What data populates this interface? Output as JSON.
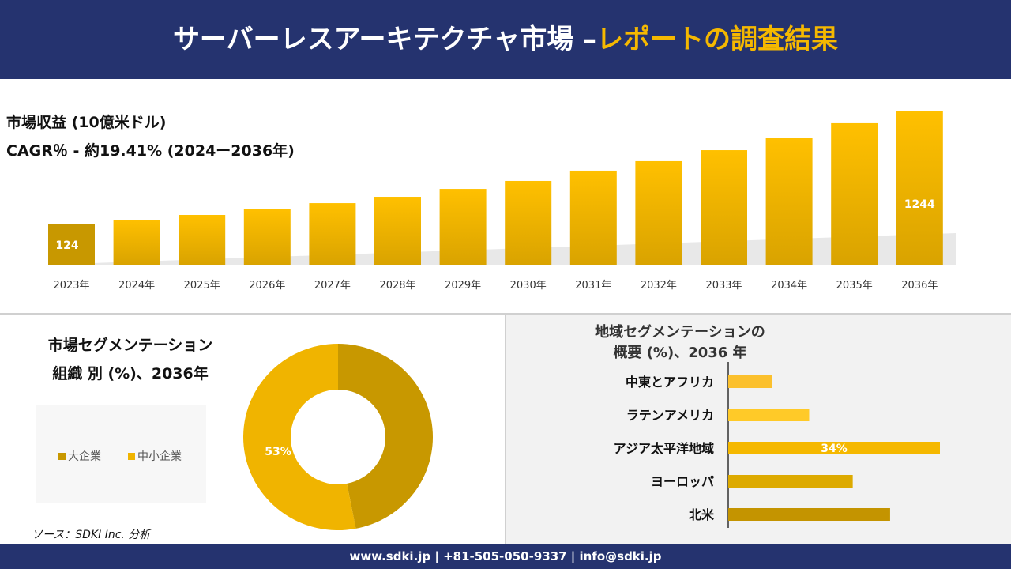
{
  "header": {
    "title_main": "サーバーレスアーキテクチャ市場 –",
    "title_accent": "レポートの調査結果"
  },
  "revenue": {
    "label": "市場収益 (10億米ドル)",
    "cagr": "CAGR％ - 約19.41% (2024ー2036年)"
  },
  "chart_data": [
    {
      "type": "bar",
      "categories": [
        "2023年",
        "2024年",
        "2025年",
        "2026年",
        "2027年",
        "2028年",
        "2029年",
        "2030年",
        "2031年",
        "2032年",
        "2033年",
        "2034年",
        "2035年",
        "2036年"
      ],
      "values": [
        124,
        171,
        218,
        273,
        335,
        398,
        476,
        555,
        657,
        751,
        860,
        985,
        1127,
        1244
      ],
      "data_labels": {
        "0": "124",
        "13": "1244"
      },
      "xlabel": "",
      "ylabel": "",
      "grid": false
    },
    {
      "type": "pie",
      "title": "市場セグメンテーション 組織 別 (%)、2036年",
      "title_line1": "市場セグメンテーション",
      "title_line2": "組織 別 (%)、2036年",
      "categories": [
        "大企業",
        "中小企業"
      ],
      "values": [
        47,
        53
      ],
      "colors": [
        "#c89800",
        "#f0b400"
      ],
      "data_labels": {
        "1": "53%"
      },
      "legend": "left"
    },
    {
      "type": "bar",
      "orientation": "horizontal",
      "title_line1": "地域セグメンテーションの",
      "title_line2": "概要 (%)、2036 年",
      "categories": [
        "中東とアフリカ",
        "ラテンアメリカ",
        "アジア太平洋地域",
        "ヨーロッパ",
        "北米"
      ],
      "values": [
        7,
        13,
        34,
        20,
        26
      ],
      "colors": [
        "#fbc02d",
        "#ffca28",
        "#f5b800",
        "#ddaa00",
        "#c49400"
      ],
      "data_labels": {
        "2": "34%"
      }
    }
  ],
  "source": "ソース：SDKI Inc. 分析",
  "footer": "www.sdki.jp | +81-505-050-9337 | info@sdki.jp"
}
